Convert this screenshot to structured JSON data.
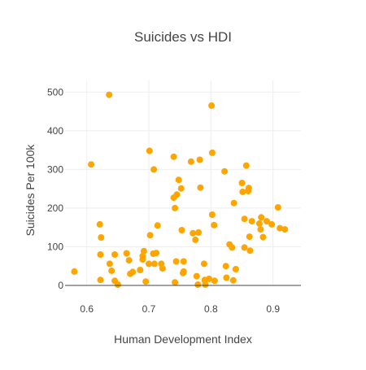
{
  "chart_data": {
    "type": "scatter",
    "title": "Suicides vs HDI",
    "xlabel": "Human Development Index",
    "ylabel": "Suicides Per 100k",
    "xlim": [
      0.565,
      0.945
    ],
    "ylim": [
      0,
      530
    ],
    "xticks": [
      0.6,
      0.7,
      0.8,
      0.9
    ],
    "xtick_labels": [
      "0.6",
      "0.7",
      "0.8",
      "0.9"
    ],
    "yticks": [
      0,
      100,
      200,
      300,
      400,
      500
    ],
    "ytick_labels": [
      "0",
      "100",
      "200",
      "300",
      "400",
      "500"
    ],
    "grid": true,
    "legend": "none",
    "marker_color": "#FFA500",
    "series": [
      {
        "points": [
          [
            0.58,
            36
          ],
          [
            0.607,
            313
          ],
          [
            0.621,
            158
          ],
          [
            0.622,
            80
          ],
          [
            0.622,
            14
          ],
          [
            0.623,
            124
          ],
          [
            0.636,
            493
          ],
          [
            0.637,
            56
          ],
          [
            0.64,
            38
          ],
          [
            0.645,
            80
          ],
          [
            0.645,
            12
          ],
          [
            0.65,
            2
          ],
          [
            0.664,
            83
          ],
          [
            0.668,
            65
          ],
          [
            0.67,
            30
          ],
          [
            0.674,
            35
          ],
          [
            0.686,
            40
          ],
          [
            0.69,
            76
          ],
          [
            0.69,
            67
          ],
          [
            0.692,
            89
          ],
          [
            0.695,
            10
          ],
          [
            0.7,
            56
          ],
          [
            0.701,
            348
          ],
          [
            0.702,
            130
          ],
          [
            0.707,
            82
          ],
          [
            0.708,
            300
          ],
          [
            0.709,
            56
          ],
          [
            0.712,
            84
          ],
          [
            0.714,
            155
          ],
          [
            0.72,
            56
          ],
          [
            0.722,
            44
          ],
          [
            0.74,
            333
          ],
          [
            0.74,
            227
          ],
          [
            0.742,
            8
          ],
          [
            0.742,
            200
          ],
          [
            0.744,
            62
          ],
          [
            0.745,
            235
          ],
          [
            0.748,
            273
          ],
          [
            0.752,
            251
          ],
          [
            0.753,
            143
          ],
          [
            0.755,
            32
          ],
          [
            0.756,
            62
          ],
          [
            0.756,
            36
          ],
          [
            0.768,
            320
          ],
          [
            0.771,
            135
          ],
          [
            0.775,
            118
          ],
          [
            0.777,
            24
          ],
          [
            0.779,
            2
          ],
          [
            0.78,
            137
          ],
          [
            0.782,
            325
          ],
          [
            0.783,
            253
          ],
          [
            0.789,
            56
          ],
          [
            0.79,
            14
          ],
          [
            0.791,
            2
          ],
          [
            0.797,
            17
          ],
          [
            0.801,
            465
          ],
          [
            0.802,
            343
          ],
          [
            0.802,
            183
          ],
          [
            0.805,
            156
          ],
          [
            0.806,
            12
          ],
          [
            0.822,
            295
          ],
          [
            0.824,
            50
          ],
          [
            0.825,
            20
          ],
          [
            0.83,
            106
          ],
          [
            0.834,
            98
          ],
          [
            0.836,
            13
          ],
          [
            0.837,
            213
          ],
          [
            0.84,
            42
          ],
          [
            0.85,
            265
          ],
          [
            0.851,
            242
          ],
          [
            0.854,
            98
          ],
          [
            0.854,
            172
          ],
          [
            0.857,
            310
          ],
          [
            0.86,
            244
          ],
          [
            0.861,
            252
          ],
          [
            0.862,
            126
          ],
          [
            0.863,
            90
          ],
          [
            0.866,
            166
          ],
          [
            0.878,
            160
          ],
          [
            0.88,
            145
          ],
          [
            0.881,
            176
          ],
          [
            0.884,
            125
          ],
          [
            0.89,
            166
          ],
          [
            0.898,
            158
          ],
          [
            0.908,
            202
          ],
          [
            0.911,
            148
          ],
          [
            0.919,
            145
          ]
        ]
      }
    ]
  }
}
